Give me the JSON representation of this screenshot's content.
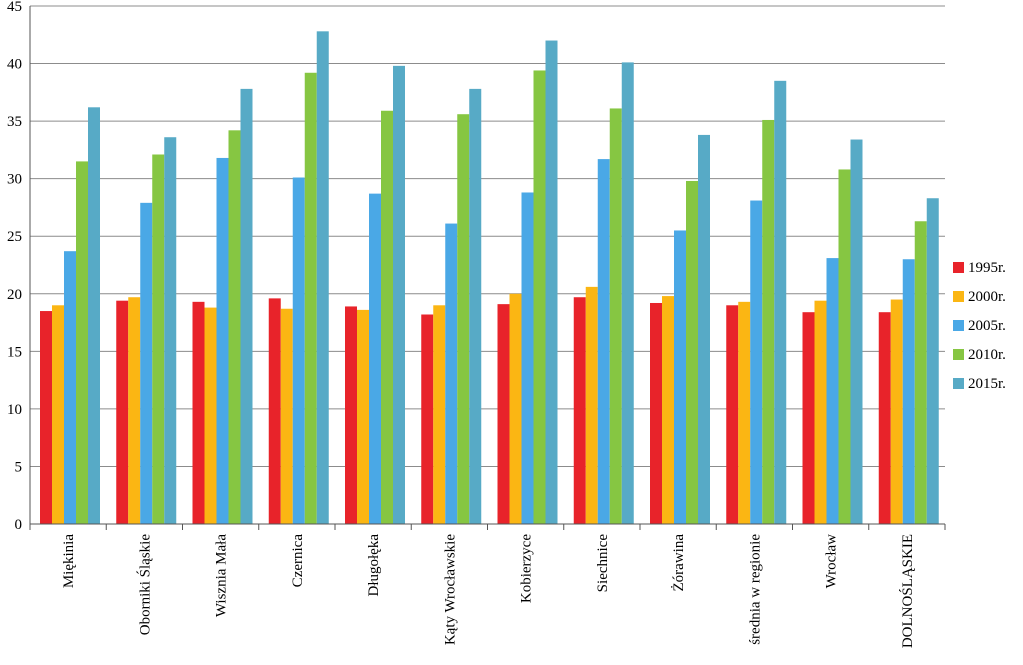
{
  "chart_data": {
    "type": "bar",
    "title": "",
    "xlabel": "",
    "ylabel": "",
    "ylim": [
      0,
      45
    ],
    "yticks": [
      0,
      5,
      10,
      15,
      20,
      25,
      30,
      35,
      40,
      45
    ],
    "grid": true,
    "legend_position": "right",
    "categories": [
      "Miękinia",
      "Oborniki Śląskie",
      "Wisznia Mała",
      "Czernica",
      "Długołęka",
      "Kąty Wrocławskie",
      "Kobierzyce",
      "Siechnice",
      "Żórawina",
      "średnia w regionie",
      "Wrocław",
      "DOLNOŚLĄSKIE"
    ],
    "series": [
      {
        "name": "1995r.",
        "color": "#e8232a",
        "values": [
          18.5,
          19.4,
          19.3,
          19.6,
          18.9,
          18.2,
          19.1,
          19.7,
          19.2,
          19.0,
          18.4,
          18.4
        ]
      },
      {
        "name": "2000r.",
        "color": "#fbb613",
        "values": [
          19.0,
          19.7,
          18.8,
          18.7,
          18.6,
          19.0,
          20.0,
          20.6,
          19.8,
          19.3,
          19.4,
          19.5
        ]
      },
      {
        "name": "2005r.",
        "color": "#4aa8e6",
        "values": [
          23.7,
          27.9,
          31.8,
          30.1,
          28.7,
          26.1,
          28.8,
          31.7,
          25.5,
          28.1,
          23.1,
          23.0
        ]
      },
      {
        "name": "2010r.",
        "color": "#86c642",
        "values": [
          31.5,
          32.1,
          34.2,
          39.2,
          35.9,
          35.6,
          39.4,
          36.1,
          29.8,
          35.1,
          30.8,
          26.3
        ]
      },
      {
        "name": "2015r.",
        "color": "#57aac6",
        "values": [
          36.2,
          33.6,
          37.8,
          42.8,
          39.8,
          37.8,
          42.0,
          40.1,
          33.8,
          38.5,
          33.4,
          28.3
        ]
      }
    ]
  }
}
